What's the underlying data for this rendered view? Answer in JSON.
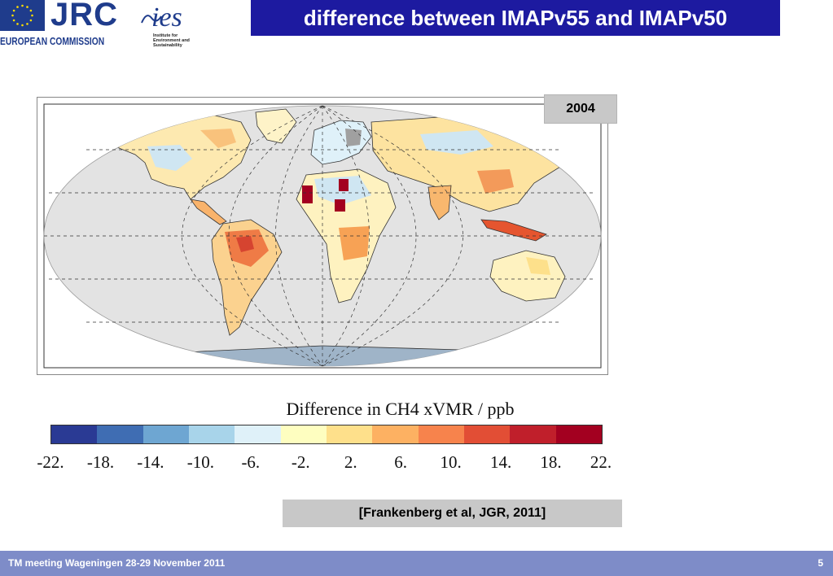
{
  "header": {
    "org_logo_text": "JRC",
    "org_name": "EUROPEAN COMMISSION",
    "institute_logo_text": "ies",
    "institute_subtitle_lines": [
      "Institute for",
      "Environment and",
      "Sustainability"
    ],
    "slide_title": "difference between IMAPv55 and IMAPv50"
  },
  "map": {
    "year_label": "2004"
  },
  "colorbar": {
    "title": "Difference in CH4 xVMR / ppb",
    "tick_labels": [
      "-22.",
      "-18.",
      "-14.",
      "-10.",
      "-6.",
      "-2.",
      "2.",
      "6.",
      "10.",
      "14.",
      "18.",
      "22."
    ],
    "colors": [
      "#2a3a94",
      "#3f6db3",
      "#6ea6d2",
      "#a8d4ea",
      "#dff1f9",
      "#fefec0",
      "#fee08b",
      "#fdb162",
      "#f7834c",
      "#e24e35",
      "#c01f2b",
      "#a30020"
    ]
  },
  "reference": "[Frankenberg et al, JGR, 2011]",
  "footer": {
    "meeting": "TM meeting Wageningen 28-29 November 2011",
    "page_number": "5"
  }
}
